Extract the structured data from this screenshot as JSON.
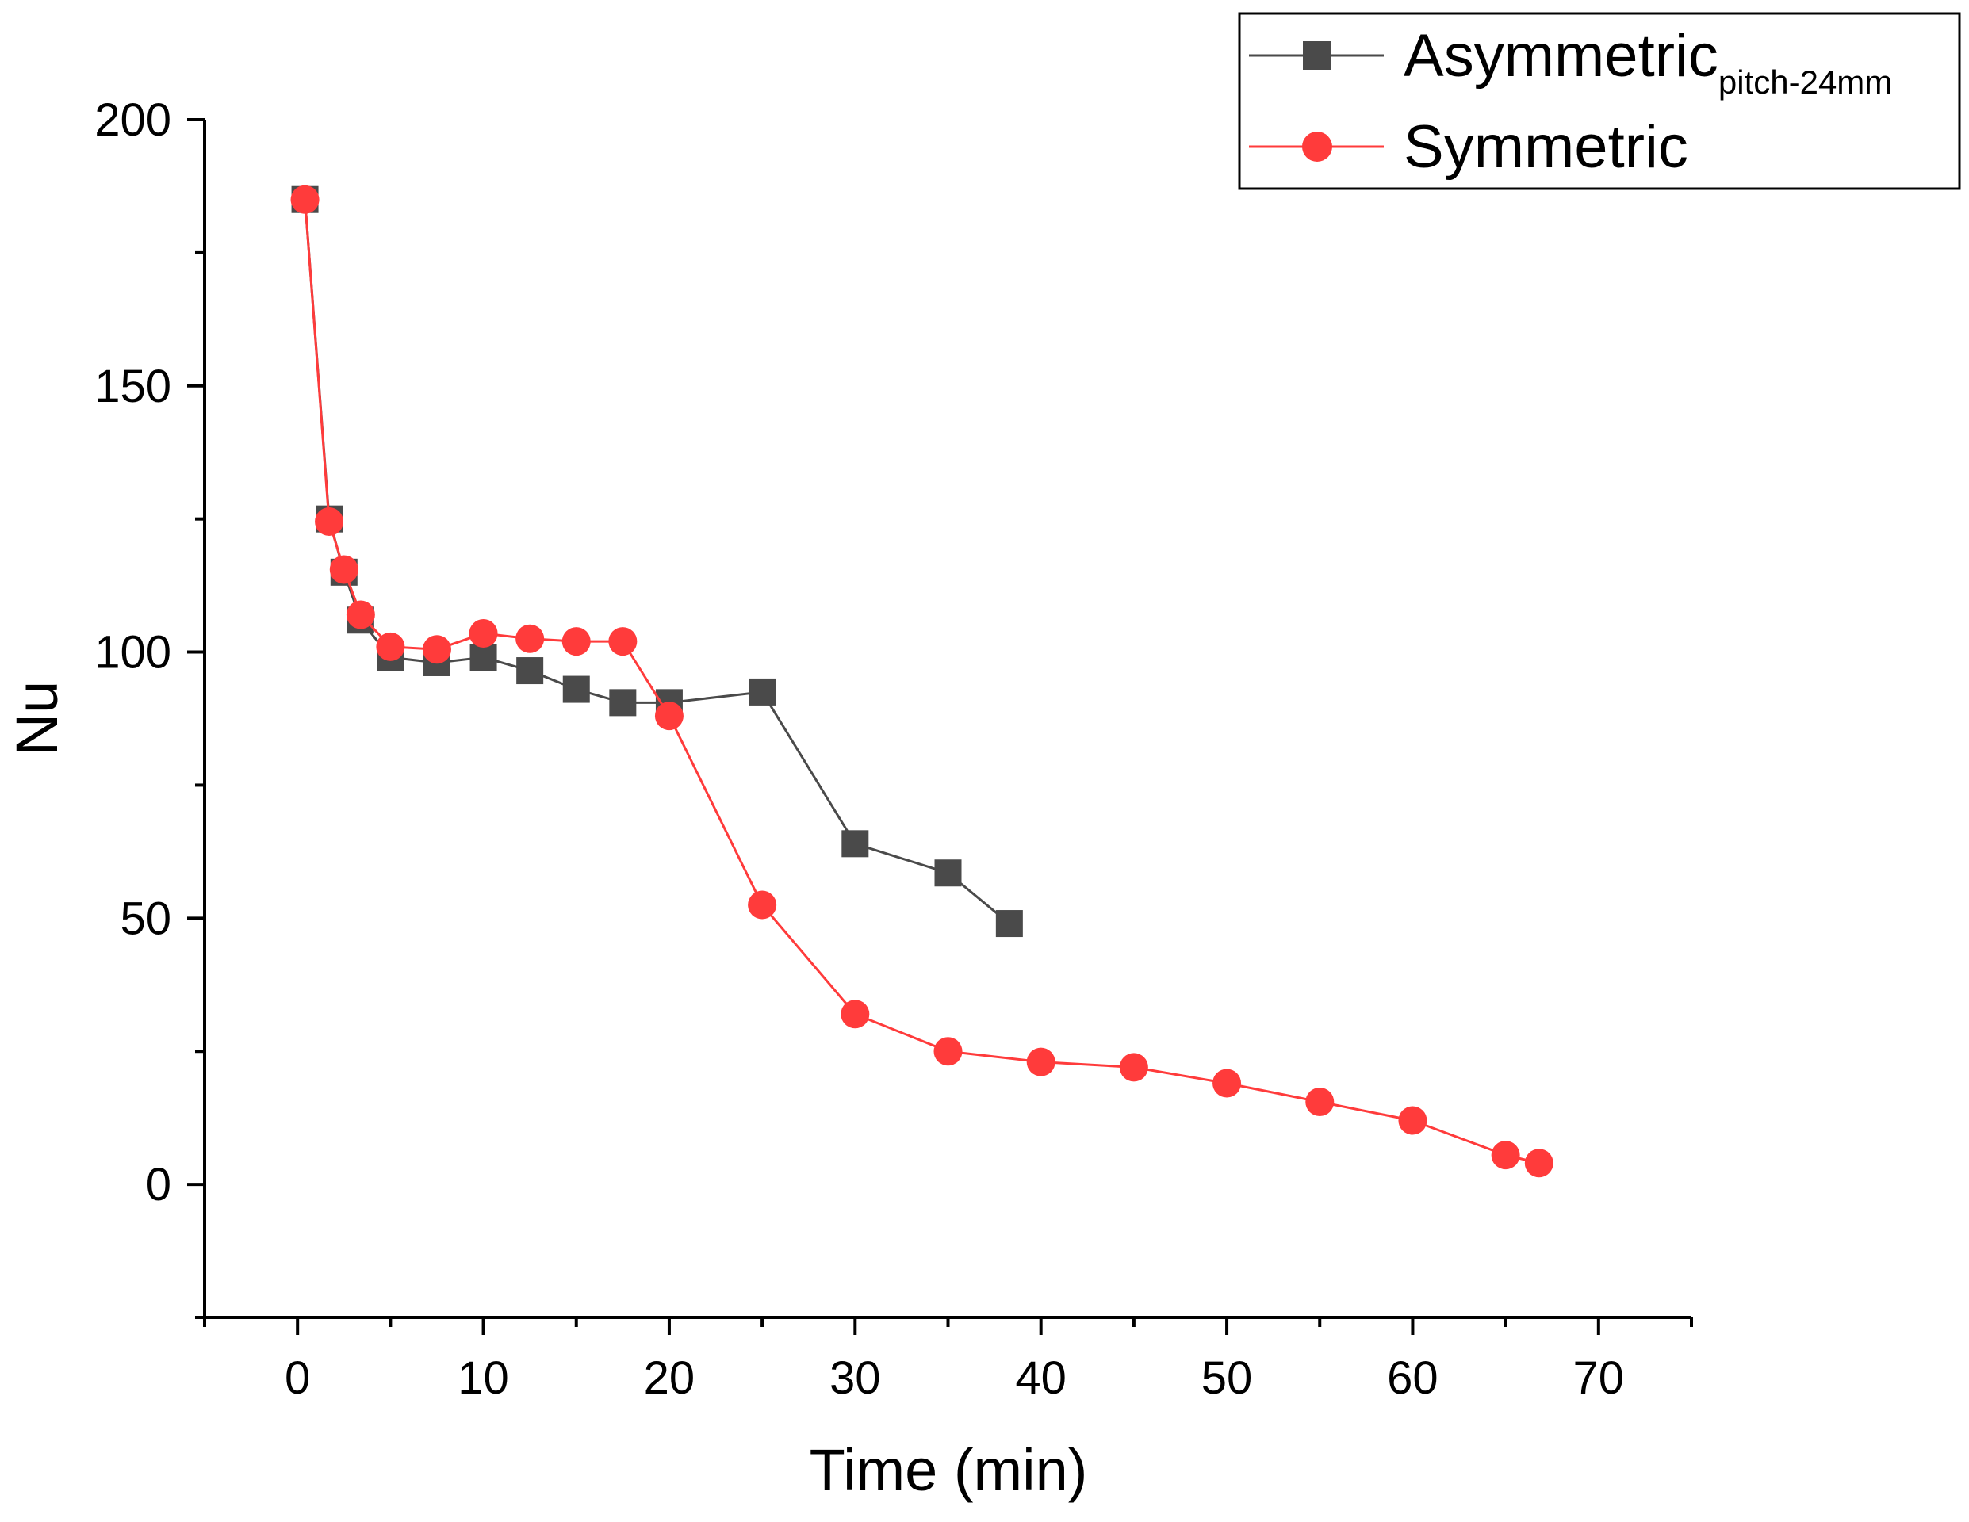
{
  "chart_data": {
    "type": "line",
    "title": "",
    "xlabel": "Time (min)",
    "ylabel": "Nu",
    "xlim": [
      -5,
      75
    ],
    "ylim": [
      -25,
      200
    ],
    "x_ticks": [
      0,
      10,
      20,
      30,
      40,
      50,
      60,
      70
    ],
    "y_ticks": [
      0,
      50,
      100,
      150,
      200
    ],
    "grid": false,
    "legend_position": "top-right",
    "series": [
      {
        "name": "Asymmetric",
        "name_subscript": "pitch-24mm",
        "color": "#4a4a4a",
        "marker": "square",
        "x": [
          0.4,
          1.7,
          2.5,
          3.4,
          5,
          7.5,
          10,
          12.5,
          15,
          17.5,
          20,
          25,
          30,
          35,
          38.3
        ],
        "y": [
          185,
          125,
          115,
          106,
          99,
          98,
          99,
          96.5,
          93,
          90.5,
          90.5,
          92.5,
          64,
          58.5,
          49
        ]
      },
      {
        "name": "Symmetric",
        "color": "#ff3b3b",
        "marker": "circle",
        "x": [
          0.4,
          1.7,
          2.5,
          3.4,
          5,
          7.5,
          10,
          12.5,
          15,
          17.5,
          20,
          25,
          30,
          35,
          40,
          45,
          50,
          55,
          60,
          65,
          66.8
        ],
        "y": [
          185,
          124.5,
          115.5,
          107,
          101,
          100.5,
          103.5,
          102.5,
          102,
          102,
          88,
          52.5,
          32,
          25,
          23,
          22,
          19,
          15.5,
          12,
          5.5,
          4
        ]
      }
    ]
  }
}
